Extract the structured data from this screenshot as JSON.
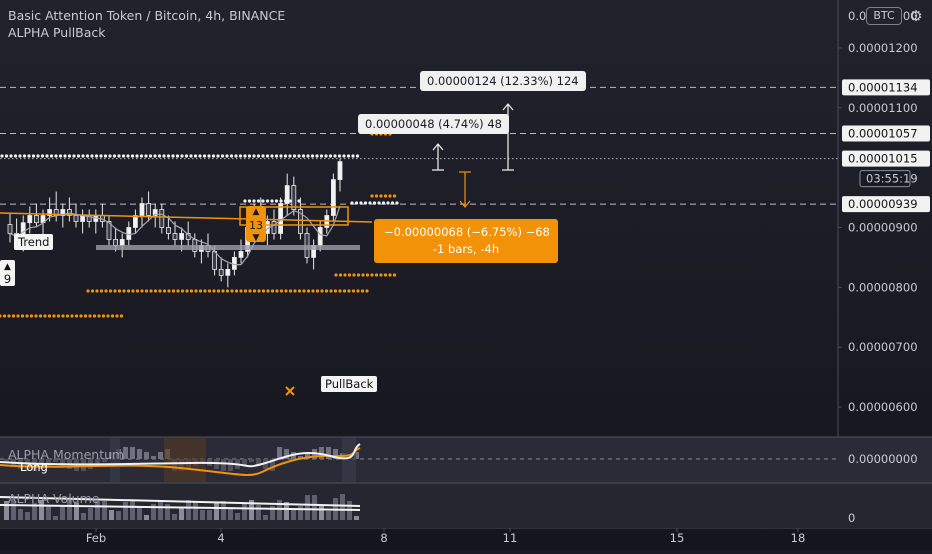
{
  "header": {
    "title": "Basic Attention Token / Bitcoin, 4h, BINANCE",
    "indicator": "ALPHA PullBack",
    "currency_badge": "BTC",
    "settings_icon": "gear-icon"
  },
  "colors": {
    "background": "#1a1a24",
    "orange": "#f29208",
    "white": "#f2f2f2",
    "grid": "#2b2c38"
  },
  "chart_data": {
    "type": "candlestick",
    "y_axis": {
      "ylim": [
        5.5e-06,
        1.28e-05
      ],
      "ticks": [
        "0.00001200",
        "0.00001100",
        "0.00000900",
        "0.00000800",
        "0.00000700",
        "0.00000600"
      ],
      "tick_values": [
        1.2e-05,
        1.1e-05,
        9e-06,
        8e-06,
        7e-06,
        6e-06
      ],
      "top_label_partial": "0.00001300"
    },
    "x_axis": {
      "ticks": [
        "Feb",
        "4",
        "8",
        "11",
        "15",
        "18"
      ]
    },
    "price_tags": [
      {
        "label": "0.00001134",
        "value": 1.134e-05,
        "style": "dashed"
      },
      {
        "label": "0.00001057",
        "value": 1.057e-05,
        "style": "dashed"
      },
      {
        "label": "0.00001015",
        "value": 1.015e-05,
        "style": "dotted"
      },
      {
        "label": "0.00000939",
        "value": 9.39e-06,
        "style": "dashed"
      }
    ],
    "countdown": "03:55:19",
    "measurements": [
      {
        "text": "0.00000124 (12.33%) 124"
      },
      {
        "text": "0.00000048 (4.74%) 48"
      },
      {
        "line1": "−0.00000068 (−6.75%) −68",
        "line2": "-1 bars, -4h"
      }
    ],
    "labels": {
      "trend": "Trend",
      "pullback": "PullBack",
      "counter_9": "9",
      "counter_13": "13"
    },
    "candles": [
      [
        9.05e-06,
        9.25e-06,
        8.75e-06,
        8.9e-06
      ],
      [
        8.9e-06,
        9.15e-06,
        8.65e-06,
        8.8e-06
      ],
      [
        8.8e-06,
        9.2e-06,
        8.6e-06,
        9.08e-06
      ],
      [
        9.08e-06,
        9.35e-06,
        8.9e-06,
        9.2e-06
      ],
      [
        9.2e-06,
        9.4e-06,
        9e-06,
        9.08e-06
      ],
      [
        9.08e-06,
        9.3e-06,
        8.8e-06,
        9.2e-06
      ],
      [
        9.2e-06,
        9.5e-06,
        9.1e-06,
        9.3e-06
      ],
      [
        9.3e-06,
        9.6e-06,
        9.1e-06,
        9.2e-06
      ],
      [
        9.2e-06,
        9.4e-06,
        9e-06,
        9.3e-06
      ],
      [
        9.3e-06,
        9.5e-06,
        9.1e-06,
        9.2e-06
      ],
      [
        9.2e-06,
        9.4e-06,
        9e-06,
        9.1e-06
      ],
      [
        9.1e-06,
        9.3e-06,
        8.9e-06,
        9.2e-06
      ],
      [
        9.2e-06,
        9.3e-06,
        9e-06,
        9.1e-06
      ],
      [
        9.1e-06,
        9.3e-06,
        8.9e-06,
        9.2e-06
      ],
      [
        9.2e-06,
        9.4e-06,
        9e-06,
        9.1e-06
      ],
      [
        9.1e-06,
        9.2e-06,
        8.7e-06,
        8.8e-06
      ],
      [
        8.8e-06,
        9e-06,
        8.6e-06,
        8.7e-06
      ],
      [
        8.7e-06,
        8.9e-06,
        8.5e-06,
        8.8e-06
      ],
      [
        8.8e-06,
        9.1e-06,
        8.7e-06,
        9e-06
      ],
      [
        9e-06,
        9.3e-06,
        8.9e-06,
        9.2e-06
      ],
      [
        9.2e-06,
        9.5e-06,
        9e-06,
        9.4e-06
      ],
      [
        9.4e-06,
        9.6e-06,
        9.1e-06,
        9.2e-06
      ],
      [
        9.2e-06,
        9.4e-06,
        9e-06,
        9.3e-06
      ],
      [
        9.3e-06,
        9.4e-06,
        8.9e-06,
        9e-06
      ],
      [
        9e-06,
        9.2e-06,
        8.8e-06,
        8.9e-06
      ],
      [
        8.9e-06,
        9.1e-06,
        8.7e-06,
        8.8e-06
      ],
      [
        8.8e-06,
        9e-06,
        8.6e-06,
        8.9e-06
      ],
      [
        8.9e-06,
        9.1e-06,
        8.7e-06,
        8.8e-06
      ],
      [
        8.8e-06,
        8.9e-06,
        8.5e-06,
        8.6e-06
      ],
      [
        8.6e-06,
        8.8e-06,
        8.4e-06,
        8.7e-06
      ],
      [
        8.7e-06,
        8.9e-06,
        8.5e-06,
        8.6e-06
      ],
      [
        8.6e-06,
        8.7e-06,
        8.2e-06,
        8.3e-06
      ],
      [
        8.3e-06,
        8.5e-06,
        8.1e-06,
        8.2e-06
      ],
      [
        8.2e-06,
        8.4e-06,
        8e-06,
        8.3e-06
      ],
      [
        8.3e-06,
        8.6e-06,
        8.2e-06,
        8.5e-06
      ],
      [
        8.5e-06,
        8.8e-06,
        8.4e-06,
        8.6e-06
      ],
      [
        8.6e-06,
        9.1e-06,
        8.5e-06,
        9e-06
      ],
      [
        9e-06,
        9.4e-06,
        8.8e-06,
        9.3e-06
      ],
      [
        9.3e-06,
        9.5e-06,
        8.8e-06,
        8.9e-06
      ],
      [
        8.9e-06,
        9.2e-06,
        8.7e-06,
        9.1e-06
      ],
      [
        9.1e-06,
        9.3e-06,
        8.8e-06,
        8.9e-06
      ],
      [
        8.9e-06,
        9.5e-06,
        8.8e-06,
        9.4e-06
      ],
      [
        9.4e-06,
        9.9e-06,
        9.2e-06,
        9.7e-06
      ],
      [
        9.7e-06,
        9.85e-06,
        9.2e-06,
        9.3e-06
      ],
      [
        9.3e-06,
        9.5e-06,
        8.8e-06,
        8.9e-06
      ],
      [
        8.9e-06,
        9e-06,
        8.4e-06,
        8.5e-06
      ],
      [
        8.5e-06,
        8.8e-06,
        8.3e-06,
        8.7e-06
      ],
      [
        8.7e-06,
        9.1e-06,
        8.6e-06,
        9e-06
      ],
      [
        9e-06,
        9.3e-06,
        8.9e-06,
        9.2e-06
      ],
      [
        9.2e-06,
        9.9e-06,
        9.1e-06,
        9.8e-06
      ],
      [
        9.8e-06,
        1.015e-05,
        9.6e-06,
        1.01e-05
      ]
    ]
  },
  "panes": {
    "momentum": {
      "title": "ALPHA Momentum",
      "label": "Long",
      "tick": "0.00000000"
    },
    "volume": {
      "title": "ALPHA Volume",
      "tick": "0"
    }
  }
}
